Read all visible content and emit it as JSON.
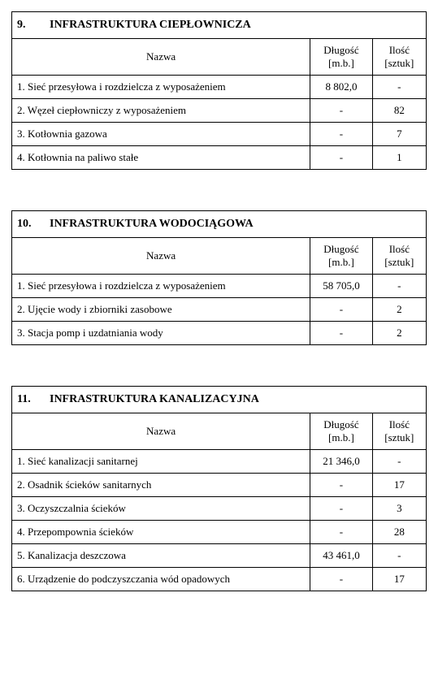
{
  "headers": {
    "name": "Nazwa",
    "length_l1": "Długość",
    "length_l2": "[m.b.]",
    "qty_l1": "Ilość",
    "qty_l2": "[sztuk]"
  },
  "sections": [
    {
      "num": "9.",
      "title": "INFRASTRUKTURA CIEPŁOWNICZA",
      "rows": [
        {
          "label": "1. Sieć przesyłowa i rozdzielcza  z  wyposażeniem",
          "length": "8 802,0",
          "qty": "-"
        },
        {
          "label": "2. Węzeł ciepłowniczy  z  wyposażeniem",
          "length": "-",
          "qty": "82"
        },
        {
          "label": "3. Kotłownia gazowa",
          "length": "-",
          "qty": "7"
        },
        {
          "label": "4. Kotłownia na paliwo stałe",
          "length": "-",
          "qty": "1"
        }
      ]
    },
    {
      "num": "10.",
      "title": "INFRASTRUKTURA WODOCIĄGOWA",
      "rows": [
        {
          "label": "1. Sieć przesyłowa i rozdzielcza z wyposażeniem",
          "length": "58 705,0",
          "qty": "-"
        },
        {
          "label": "2. Ujęcie wody i zbiorniki zasobowe",
          "length": "-",
          "qty": "2"
        },
        {
          "label": "3. Stacja pomp i uzdatniania wody",
          "length": "-",
          "qty": "2"
        }
      ]
    },
    {
      "num": "11.",
      "title": "INFRASTRUKTURA KANALIZACYJNA",
      "rows": [
        {
          "label": "1. Sieć kanalizacji sanitarnej",
          "length": "21 346,0",
          "qty": "-"
        },
        {
          "label": "2. Osadnik ścieków sanitarnych",
          "length": "-",
          "qty": "17"
        },
        {
          "label": "3. Oczyszczalnia ścieków",
          "length": "-",
          "qty": "3"
        },
        {
          "label": "4. Przepompownia ścieków",
          "length": "-",
          "qty": "28"
        },
        {
          "label": "5. Kanalizacja deszczowa",
          "length": "43 461,0",
          "qty": "-"
        },
        {
          "label": "6. Urządzenie do podczyszczania wód opadowych",
          "length": "-",
          "qty": "17"
        }
      ]
    }
  ]
}
